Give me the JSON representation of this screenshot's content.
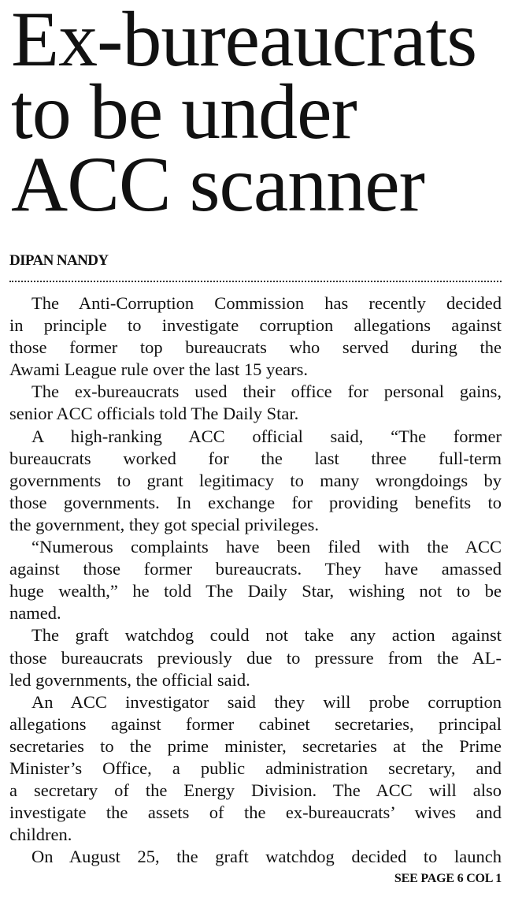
{
  "headline": {
    "lines": [
      "Ex-bureaucrats",
      "to be under",
      "ACC scanner"
    ]
  },
  "byline": "DIPAN NANDY",
  "paragraphs": [
    {
      "lines": [
        "The Anti-Corruption Commission has recently decided",
        "in principle to investigate corruption allegations against",
        "those former top bureaucrats who served during the",
        "Awami League rule over the last 15 years."
      ]
    },
    {
      "lines": [
        "The ex-bureaucrats used their office for personal gains,",
        "senior ACC officials told The Daily Star."
      ]
    },
    {
      "lines": [
        "A high-ranking ACC official said, “The former",
        "bureaucrats worked for the last three full-term",
        "governments to grant legitimacy to many wrongdoings by",
        "those governments. In exchange for providing benefits to",
        "the government, they got special privileges."
      ]
    },
    {
      "lines": [
        "“Numerous complaints have been filed with the ACC",
        "against those former bureaucrats. They have amassed",
        "huge wealth,” he told The Daily Star, wishing not to be",
        "named."
      ]
    },
    {
      "lines": [
        "The graft watchdog could not take any action against",
        "those bureaucrats previously due to pressure from the AL-",
        "led governments, the official said."
      ]
    },
    {
      "lines": [
        "An ACC investigator said they will probe corruption",
        "allegations against former cabinet secretaries, principal",
        "secretaries to the prime minister, secretaries at the Prime",
        "Minister’s Office, a public administration secretary, and",
        "a secretary of the Energy Division. The ACC will also",
        "investigate the assets of the ex-bureaucrats’ wives and",
        "children."
      ]
    },
    {
      "lines": [
        "On August 25, the graft watchdog decided to launch"
      ],
      "continues": true
    }
  ],
  "jump": "SEE PAGE 6 COL 1"
}
